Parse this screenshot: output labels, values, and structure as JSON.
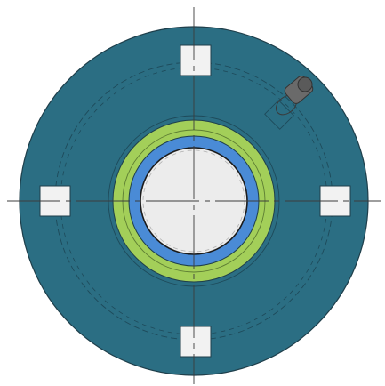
{
  "drawing": {
    "view": "top view",
    "parts": {
      "flange_disc": {
        "color": "#2b6e83"
      },
      "outer_ring": {
        "color": "#a3cf59"
      },
      "inner_ring": {
        "color": "#4a8bd6"
      },
      "bore": {
        "color": "#ececec"
      },
      "mounting_slots": {
        "count": 4,
        "color": "#f2f2f2"
      },
      "grease_fitting": {
        "color": "#6a6a6a"
      }
    },
    "line_colors": {
      "centerline": "#3c3c3c",
      "hidden": "#1e4a5a",
      "outline": "#1f3f4b"
    }
  }
}
